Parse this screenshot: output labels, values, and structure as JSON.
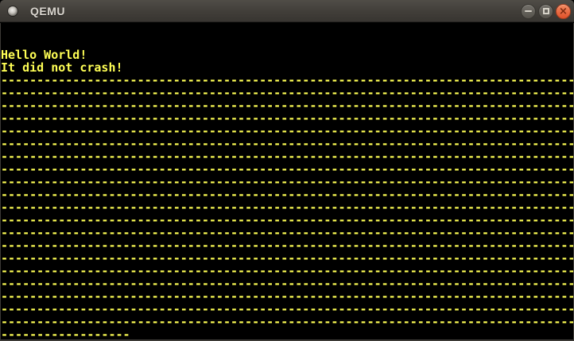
{
  "window": {
    "title": "QEMU",
    "controls": {
      "buttons": [
        "minimize",
        "maximize",
        "close"
      ],
      "close_glyph": "×"
    }
  },
  "colors": {
    "titlebar-top": "#504d47",
    "titlebar-bottom": "#383531",
    "title-text": "#dad6cf",
    "close-top": "#f28a61",
    "close-bottom": "#e1512a",
    "terminal-bg": "#000000",
    "terminal-fg": "#ffff55"
  },
  "terminal": {
    "lines": [
      "",
      "",
      "Hello World!",
      "It did not crash!",
      "--------------------------------------------------------------------------------",
      "--------------------------------------------------------------------------------",
      "--------------------------------------------------------------------------------",
      "--------------------------------------------------------------------------------",
      "--------------------------------------------------------------------------------",
      "--------------------------------------------------------------------------------",
      "--------------------------------------------------------------------------------",
      "--------------------------------------------------------------------------------",
      "--------------------------------------------------------------------------------",
      "--------------------------------------------------------------------------------",
      "--------------------------------------------------------------------------------",
      "--------------------------------------------------------------------------------",
      "--------------------------------------------------------------------------------",
      "--------------------------------------------------------------------------------",
      "--------------------------------------------------------------------------------",
      "--------------------------------------------------------------------------------",
      "--------------------------------------------------------------------------------",
      "--------------------------------------------------------------------------------",
      "--------------------------------------------------------------------------------",
      "--------------------------------------------------------------------------------",
      "------------------"
    ]
  }
}
